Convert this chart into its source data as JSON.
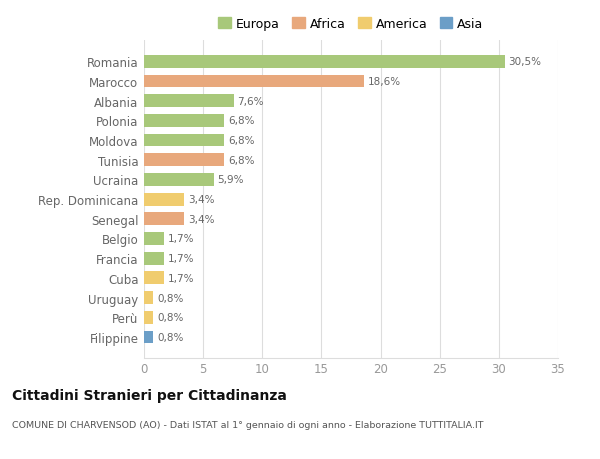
{
  "categories": [
    "Romania",
    "Marocco",
    "Albania",
    "Polonia",
    "Moldova",
    "Tunisia",
    "Ucraina",
    "Rep. Dominicana",
    "Senegal",
    "Belgio",
    "Francia",
    "Cuba",
    "Uruguay",
    "Perù",
    "Filippine"
  ],
  "values": [
    30.5,
    18.6,
    7.6,
    6.8,
    6.8,
    6.8,
    5.9,
    3.4,
    3.4,
    1.7,
    1.7,
    1.7,
    0.8,
    0.8,
    0.8
  ],
  "labels": [
    "30,5%",
    "18,6%",
    "7,6%",
    "6,8%",
    "6,8%",
    "6,8%",
    "5,9%",
    "3,4%",
    "3,4%",
    "1,7%",
    "1,7%",
    "1,7%",
    "0,8%",
    "0,8%",
    "0,8%"
  ],
  "colors": [
    "#a8c87a",
    "#e8a87c",
    "#a8c87a",
    "#a8c87a",
    "#a8c87a",
    "#e8a87c",
    "#a8c87a",
    "#f0cc6e",
    "#e8a87c",
    "#a8c87a",
    "#a8c87a",
    "#f0cc6e",
    "#f0cc6e",
    "#f0cc6e",
    "#6b9ec7"
  ],
  "legend_labels": [
    "Europa",
    "Africa",
    "America",
    "Asia"
  ],
  "legend_colors": [
    "#a8c87a",
    "#e8a87c",
    "#f0cc6e",
    "#6b9ec7"
  ],
  "title": "Cittadini Stranieri per Cittadinanza",
  "subtitle": "COMUNE DI CHARVENSOD (AO) - Dati ISTAT al 1° gennaio di ogni anno - Elaborazione TUTTITALIA.IT",
  "xlim": [
    0,
    35
  ],
  "xticks": [
    0,
    5,
    10,
    15,
    20,
    25,
    30,
    35
  ],
  "background_color": "#ffffff",
  "grid_color": "#dddddd",
  "bar_height": 0.65
}
